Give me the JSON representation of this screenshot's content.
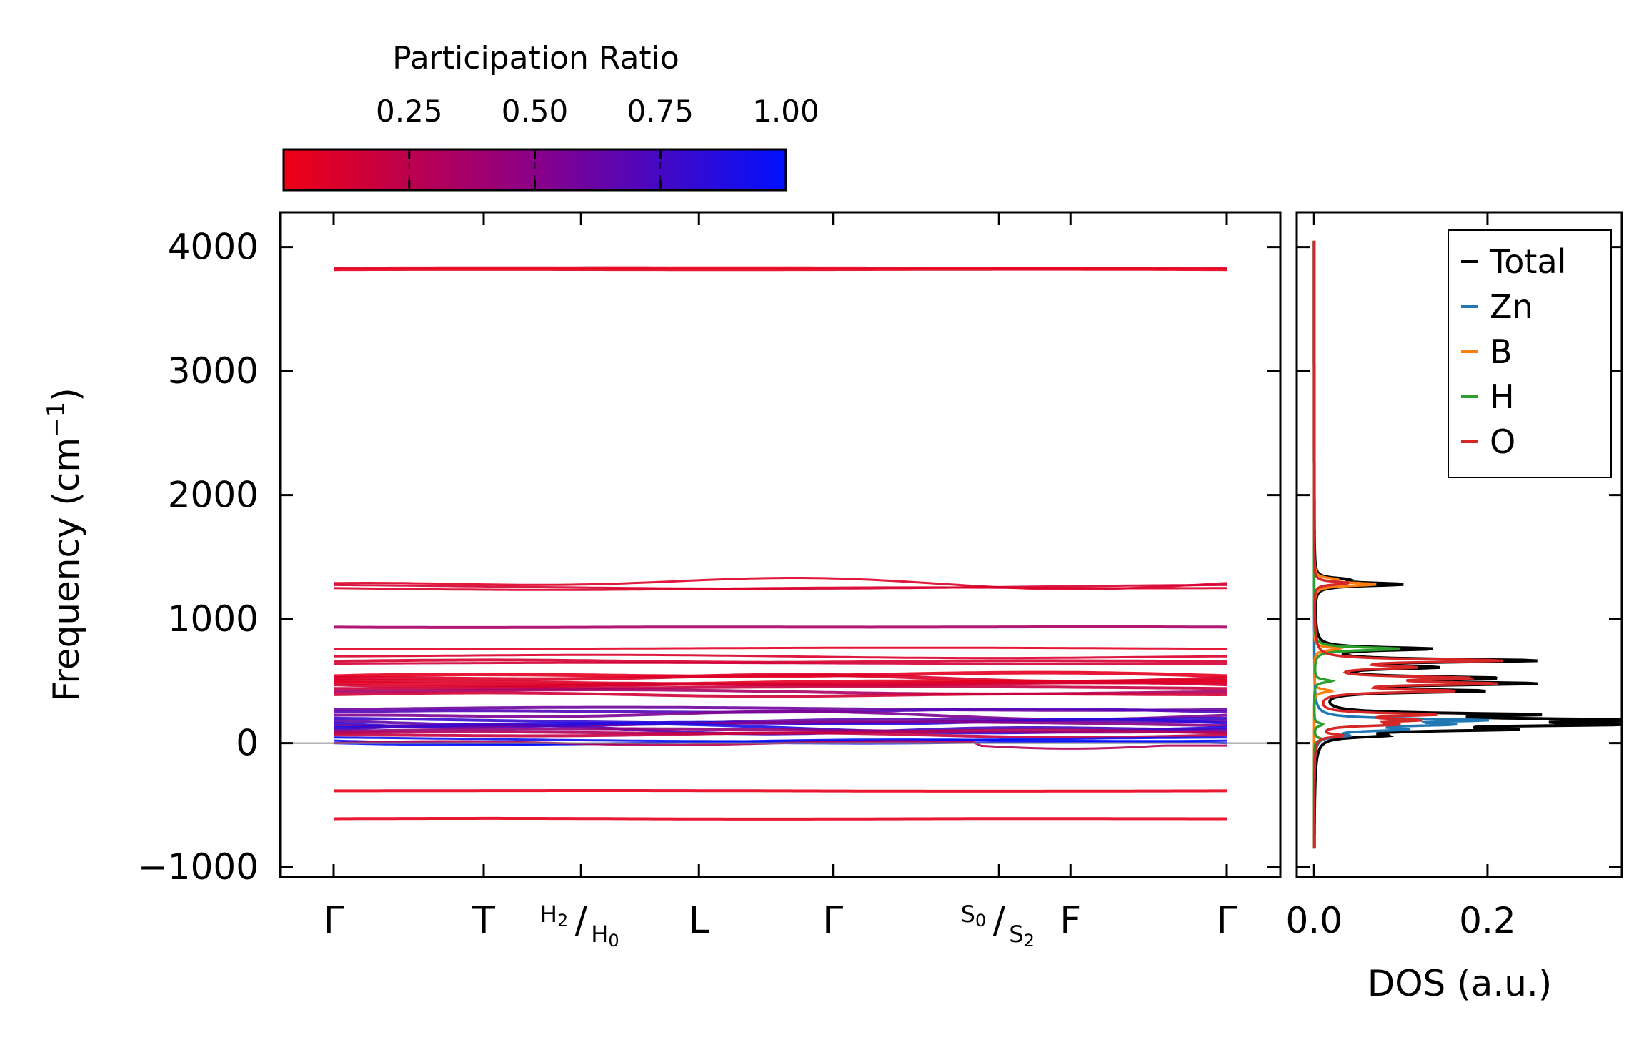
{
  "chart_data": [
    {
      "type": "line",
      "panel": "band-structure",
      "ylabel": "Frequency (cm",
      "ylabel_sup": "−1",
      "ylabel_end": ")",
      "ylim": [
        -1080,
        4280
      ],
      "yticks": [
        {
          "value": -1000,
          "label": "−1000"
        },
        {
          "value": 0,
          "label": "0"
        },
        {
          "value": 1000,
          "label": "1000"
        },
        {
          "value": 2000,
          "label": "2000"
        },
        {
          "value": 3000,
          "label": "3000"
        },
        {
          "value": 4000,
          "label": "4000"
        }
      ],
      "xlim": [
        -0.06,
        1.06
      ],
      "kpoints": [
        {
          "pos": 0.0,
          "label": "Γ"
        },
        {
          "pos": 0.168,
          "label": "T"
        },
        {
          "pos": 0.277,
          "label_a": "H",
          "sub_a": "2",
          "label_b": "H",
          "sub_b": "0"
        },
        {
          "pos": 0.409,
          "label": "L"
        },
        {
          "pos": 0.559,
          "label": "Γ"
        },
        {
          "pos": 0.745,
          "label_a": "S",
          "sub_a": "0",
          "label_b": "S",
          "sub_b": "2"
        },
        {
          "pos": 0.825,
          "label": "F"
        },
        {
          "pos": 1.0,
          "label": "Γ"
        }
      ],
      "zero_line": 0,
      "bands": [
        {
          "base": 3830,
          "amp": 4,
          "width": 4,
          "pr": 0.04
        },
        {
          "base": 3818,
          "amp": 4,
          "width": 4,
          "pr": 0.04
        },
        {
          "base": 1290,
          "amp": 50,
          "width": 3,
          "pr": 0.08
        },
        {
          "base": 1275,
          "amp": 30,
          "width": 3,
          "pr": 0.12
        },
        {
          "base": 1250,
          "amp": 15,
          "width": 3,
          "pr": 0.1
        },
        {
          "base": 935,
          "amp": 4,
          "width": 4,
          "pr": 0.35
        },
        {
          "base": 760,
          "amp": 12,
          "width": 3,
          "pr": 0.06
        },
        {
          "base": 700,
          "amp": 15,
          "width": 3,
          "pr": 0.1
        },
        {
          "base": 660,
          "amp": 10,
          "width": 4,
          "pr": 0.12
        },
        {
          "base": 640,
          "amp": 12,
          "width": 3,
          "pr": 0.15
        },
        {
          "base": 540,
          "amp": 35,
          "width": 5,
          "pr": 0.05
        },
        {
          "base": 525,
          "amp": 30,
          "width": 5,
          "pr": 0.08
        },
        {
          "base": 505,
          "amp": 30,
          "width": 5,
          "pr": 0.1
        },
        {
          "base": 490,
          "amp": 25,
          "width": 5,
          "pr": 0.06
        },
        {
          "base": 470,
          "amp": 25,
          "width": 4,
          "pr": 0.12
        },
        {
          "base": 440,
          "amp": 20,
          "width": 4,
          "pr": 0.2
        },
        {
          "base": 415,
          "amp": 20,
          "width": 4,
          "pr": 0.35
        },
        {
          "base": 390,
          "amp": 15,
          "width": 4,
          "pr": 0.15
        },
        {
          "base": 270,
          "amp": 30,
          "width": 4,
          "pr": 0.6
        },
        {
          "base": 250,
          "amp": 30,
          "width": 4,
          "pr": 0.7
        },
        {
          "base": 225,
          "amp": 35,
          "width": 4,
          "pr": 0.55
        },
        {
          "base": 200,
          "amp": 40,
          "width": 4,
          "pr": 0.8
        },
        {
          "base": 180,
          "amp": 40,
          "width": 4,
          "pr": 0.65
        },
        {
          "base": 160,
          "amp": 45,
          "width": 4,
          "pr": 0.85
        },
        {
          "base": 140,
          "amp": 40,
          "width": 4,
          "pr": 0.5
        },
        {
          "base": 125,
          "amp": 45,
          "width": 4,
          "pr": 0.9
        },
        {
          "base": 110,
          "amp": 40,
          "width": 4,
          "pr": 0.75
        },
        {
          "base": 95,
          "amp": 35,
          "width": 4,
          "pr": 0.45
        },
        {
          "base": 80,
          "amp": 30,
          "width": 4,
          "pr": 0.3
        },
        {
          "base": 65,
          "amp": 20,
          "width": 4,
          "pr": 0.2
        },
        {
          "base": 45,
          "amp": 30,
          "width": 3,
          "pr": 0.95
        },
        {
          "base": 20,
          "amp": 30,
          "width": 3,
          "pr": 0.98
        },
        {
          "base": 0,
          "amp": 20,
          "width": 3,
          "pr": 0.99
        },
        {
          "base": -20,
          "amp": 0,
          "width": 3,
          "pr": 0.3,
          "dip": true
        },
        {
          "base": -385,
          "amp": 3,
          "width": 4,
          "pr": 0.03
        },
        {
          "base": -610,
          "amp": 3,
          "width": 4,
          "pr": 0.03
        }
      ],
      "colorbar": {
        "title": "Participation Ratio",
        "min": 0.0,
        "max": 1.0,
        "ticks": [
          {
            "value": 0.25,
            "label": "0.25"
          },
          {
            "value": 0.5,
            "label": "0.50"
          },
          {
            "value": 0.75,
            "label": "0.75"
          },
          {
            "value": 1.0,
            "label": "1.00"
          }
        ],
        "color_low": "#ee0014",
        "color_mid": "#8a0088",
        "color_high": "#0010ff"
      }
    },
    {
      "type": "line",
      "panel": "dos",
      "xlabel": "DOS (a.u.)",
      "xlim": [
        -0.02,
        0.355
      ],
      "xticks": [
        {
          "value": 0.0,
          "label": "0.0"
        },
        {
          "value": 0.2,
          "label": "0.2"
        }
      ],
      "series": [
        {
          "name": "Total",
          "color": "#000000",
          "peaks": [
            [
              1320,
              0.03
            ],
            [
              1280,
              0.1
            ],
            [
              760,
              0.13
            ],
            [
              665,
              0.245
            ],
            [
              610,
              0.12
            ],
            [
              525,
              0.185
            ],
            [
              480,
              0.23
            ],
            [
              420,
              0.18
            ],
            [
              230,
              0.22
            ],
            [
              185,
              0.34
            ],
            [
              150,
              0.29
            ],
            [
              110,
              0.19
            ],
            [
              60,
              0.06
            ]
          ]
        },
        {
          "name": "Zn",
          "color": "#1f77b4",
          "peaks": [
            [
              185,
              0.18
            ],
            [
              150,
              0.13
            ],
            [
              110,
              0.09
            ],
            [
              60,
              0.03
            ]
          ]
        },
        {
          "name": "B",
          "color": "#ff7f0e",
          "peaks": [
            [
              1280,
              0.07
            ],
            [
              1320,
              0.02
            ],
            [
              760,
              0.03
            ],
            [
              420,
              0.02
            ]
          ]
        },
        {
          "name": "H",
          "color": "#2ca02c",
          "peaks": [
            [
              760,
              0.1
            ],
            [
              500,
              0.02
            ],
            [
              150,
              0.01
            ],
            [
              30,
              0.01
            ]
          ]
        },
        {
          "name": "O",
          "color": "#d62728",
          "peaks": [
            [
              1290,
              0.04
            ],
            [
              665,
              0.21
            ],
            [
              610,
              0.1
            ],
            [
              525,
              0.16
            ],
            [
              480,
              0.19
            ],
            [
              420,
              0.15
            ],
            [
              230,
              0.13
            ],
            [
              185,
              0.1
            ],
            [
              150,
              0.08
            ],
            [
              60,
              0.03
            ]
          ]
        }
      ],
      "legend_position": "top-right"
    }
  ]
}
